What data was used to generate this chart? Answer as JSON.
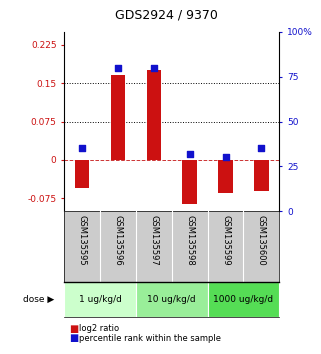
{
  "title": "GDS2924 / 9370",
  "samples": [
    "GSM135595",
    "GSM135596",
    "GSM135597",
    "GSM135598",
    "GSM135599",
    "GSM135600"
  ],
  "log2_ratios": [
    -0.055,
    0.165,
    0.175,
    -0.085,
    -0.065,
    -0.06
  ],
  "percentile_ranks": [
    35,
    80,
    80,
    32,
    30,
    35
  ],
  "ylim_left": [
    -0.1,
    0.25
  ],
  "ylim_right": [
    0,
    100
  ],
  "yticks_left": [
    -0.075,
    0,
    0.075,
    0.15,
    0.225
  ],
  "yticks_right": [
    0,
    25,
    50,
    75,
    100
  ],
  "hlines": [
    0.075,
    0.15
  ],
  "dose_groups": [
    {
      "label": "1 ug/kg/d",
      "samples": [
        "GSM135595",
        "GSM135596"
      ],
      "color": "#ccffcc"
    },
    {
      "label": "10 ug/kg/d",
      "samples": [
        "GSM135597",
        "GSM135598"
      ],
      "color": "#99ee99"
    },
    {
      "label": "1000 ug/kg/d",
      "samples": [
        "GSM135599",
        "GSM135600"
      ],
      "color": "#55dd55"
    }
  ],
  "bar_color": "#cc1111",
  "dot_color": "#1111cc",
  "bar_width": 0.4,
  "dot_size": 22,
  "xlabel_rotation": 270,
  "label_color_left": "#cc1111",
  "label_color_right": "#1111cc",
  "legend_red_label": "log2 ratio",
  "legend_blue_label": "percentile rank within the sample",
  "dose_label": "dose",
  "sample_bg_color": "#cccccc",
  "zero_line_color": "#cc3333",
  "zero_line_style": "--"
}
